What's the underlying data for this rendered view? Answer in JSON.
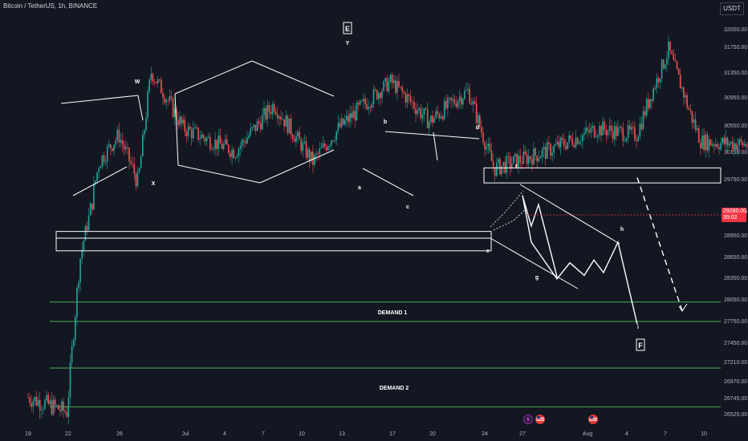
{
  "header": {
    "symbol_text": "Bitcoin / TetherUS, 1h, BINANCE"
  },
  "currency_button": "USDT",
  "price_badge": {
    "price": "29280.00",
    "countdown": "39:02"
  },
  "colors": {
    "background": "#131722",
    "candle_up": "#26a69a",
    "candle_down": "#ef5350",
    "annotation": "#ffffff",
    "demand_line": "#4caf50",
    "price_badge": "#f23645"
  },
  "chart_data": {
    "type": "candlestick",
    "title": "",
    "price_axis_ticks": [
      32000,
      31750,
      31350,
      30950,
      30550,
      30150,
      29750,
      29350,
      28950,
      28650,
      28350,
      28050,
      27750,
      27450,
      27210,
      26970,
      26745,
      26525
    ],
    "price_axis_labels": [
      "32000.00",
      "31750.00",
      "31350.00",
      "30950.00",
      "30550.00",
      "30150.00",
      "29750.00",
      "29350.00",
      "28950.00",
      "28650.00",
      "28350.00",
      "28050.00",
      "27750.00",
      "27450.00",
      "27210.00",
      "26970.00",
      "26745.00",
      "26525.00"
    ],
    "time_axis_labels": [
      "19",
      "22",
      "26",
      "Jul",
      "4",
      "7",
      "10",
      "13",
      "17",
      "20",
      "24",
      "27",
      "Aug",
      "4",
      "7",
      "10"
    ],
    "last_price": 29280.0,
    "price_path": [
      {
        "t": "2023-06-19 00:00",
        "p": 26750
      },
      {
        "t": "2023-06-20 12:00",
        "p": 26550
      },
      {
        "t": "2023-06-21 00:00",
        "p": 28600
      },
      {
        "t": "2023-06-21 18:00",
        "p": 30000
      },
      {
        "t": "2023-06-22 12:00",
        "p": 30400
      },
      {
        "t": "2023-06-23 06:00",
        "p": 29700
      },
      {
        "t": "2023-06-23 18:00",
        "p": 31350
      },
      {
        "t": "2023-06-25 00:00",
        "p": 30500
      },
      {
        "t": "2023-06-27 00:00",
        "p": 30150
      },
      {
        "t": "2023-06-28 12:00",
        "p": 30850
      },
      {
        "t": "2023-06-30 00:00",
        "p": 30000
      },
      {
        "t": "2023-07-01 00:00",
        "p": 30500
      },
      {
        "t": "2023-07-03 00:00",
        "p": 31200
      },
      {
        "t": "2023-07-04 12:00",
        "p": 30600
      },
      {
        "t": "2023-07-06 00:00",
        "p": 31050
      },
      {
        "t": "2023-07-07 00:00",
        "p": 29900
      },
      {
        "t": "2023-07-09 00:00",
        "p": 30150
      },
      {
        "t": "2023-07-11 00:00",
        "p": 30500
      },
      {
        "t": "2023-07-12 12:00",
        "p": 30400
      },
      {
        "t": "2023-07-13 18:00",
        "p": 31700
      },
      {
        "t": "2023-07-14 12:00",
        "p": 30800
      },
      {
        "t": "2023-07-15 00:00",
        "p": 30300
      },
      {
        "t": "2023-07-17 00:00",
        "p": 30250
      },
      {
        "t": "2023-07-18 12:00",
        "p": 29850
      },
      {
        "t": "2023-07-19 18:00",
        "p": 30050
      },
      {
        "t": "2023-07-21 00:00",
        "p": 29900
      },
      {
        "t": "2023-07-23 00:00",
        "p": 30050
      },
      {
        "t": "2023-07-24 00:00",
        "p": 29450
      },
      {
        "t": "2023-07-24 18:00",
        "p": 29150
      },
      {
        "t": "2023-07-26 00:00",
        "p": 29250
      },
      {
        "t": "2023-07-27 00:00",
        "p": 29450
      },
      {
        "t": "2023-07-27 18:00",
        "p": 29280
      }
    ],
    "zones": [
      {
        "label": "DEMAND 1",
        "high": 28010,
        "low": 27740
      },
      {
        "label": "DEMAND 2",
        "high": 27130,
        "low": 26620
      }
    ],
    "boxes": [
      {
        "high": 29910,
        "low": 29700
      },
      {
        "high": 29010,
        "low": 28730
      }
    ],
    "wave_labels": [
      "W",
      "X",
      "E",
      "Y",
      "a",
      "b",
      "c",
      "d",
      "e",
      "f",
      "g",
      "h",
      "i",
      "F"
    ],
    "projection_path": [
      29550,
      28850,
      28330,
      28560,
      28380,
      28600,
      28420,
      28850,
      27700
    ],
    "alt_projection": [
      29850,
      28000
    ]
  }
}
